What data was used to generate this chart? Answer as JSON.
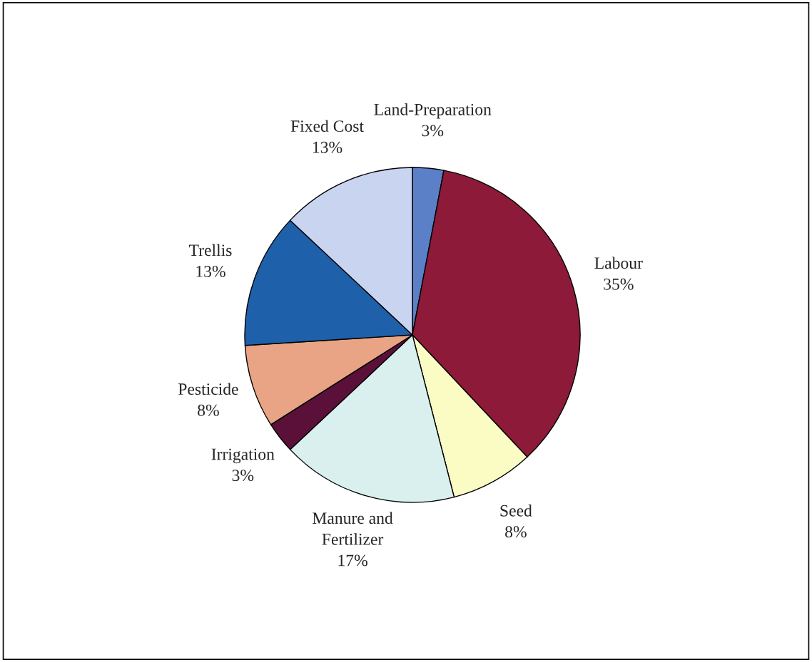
{
  "chart_data": {
    "type": "pie",
    "categories": [
      "Land-Preparation",
      "Labour",
      "Seed",
      "Manure and\nFertilizer",
      "Irrigation",
      "Pesticide",
      "Trellis",
      "Fixed Cost"
    ],
    "values": [
      3,
      35,
      8,
      17,
      3,
      8,
      13,
      13
    ],
    "value_labels": [
      "3%",
      "35%",
      "8%",
      "17%",
      "3%",
      "8%",
      "13%",
      "13%"
    ],
    "colors": [
      "#5b80c8",
      "#8c1a38",
      "#fbfbc4",
      "#d9f0ee",
      "#5a1038",
      "#e8a484",
      "#1f60aa",
      "#c9d5f0"
    ]
  }
}
